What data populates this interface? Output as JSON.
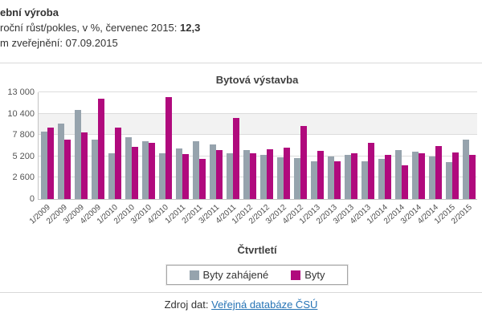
{
  "header": {
    "title_fragment": "ební výroba",
    "growth_prefix": "roční růst/pokles, v %, červenec 2015: ",
    "growth_value": "12,3",
    "publish_line": "m zveřejnění: 07.09.2015"
  },
  "footer": {
    "prefix": "Zdroj dat: ",
    "link_text": "Veřejná databáze ČSÚ"
  },
  "colors": {
    "series_started": "#96a3ad",
    "series_byty": "#b00a7d",
    "band": "#f2f2f2",
    "gridline": "#dcdcdc",
    "link": "#2573b5",
    "divider": "#d9d9d9"
  },
  "chart_data": {
    "type": "bar",
    "title": "Bytová výstavba",
    "xlabel": "Čtvrtletí",
    "ylabel": "",
    "ylim": [
      0,
      13000
    ],
    "yticks": [
      0,
      2600,
      5200,
      7800,
      10400,
      13000
    ],
    "ytick_labels": [
      "0",
      "2 600",
      "5 200",
      "7 800",
      "10 400",
      "13 000"
    ],
    "grid": true,
    "band": {
      "from": 7800,
      "to": 10400
    },
    "legend_position": "bottom",
    "categories": [
      "1/2009",
      "2/2009",
      "3/2009",
      "4/2009",
      "1/2010",
      "2/2010",
      "3/2010",
      "4/2010",
      "1/2011",
      "2/2011",
      "3/2011",
      "4/2011",
      "1/2012",
      "2/2012",
      "3/2012",
      "4/2012",
      "1/2013",
      "2/2013",
      "3/2013",
      "4/2013",
      "1/2014",
      "2/2014",
      "3/2014",
      "4/2014",
      "1/2015",
      "2/2015"
    ],
    "series": [
      {
        "name": "Byty zahájené",
        "color": "#96a3ad",
        "values": [
          8200,
          9200,
          10900,
          7200,
          5600,
          7500,
          7000,
          5600,
          6200,
          7000,
          6600,
          5600,
          6000,
          5400,
          5100,
          5000,
          4600,
          5200,
          5400,
          4600,
          4900,
          6000,
          5800,
          5200,
          4500,
          7200
        ]
      },
      {
        "name": "Byty",
        "color": "#b00a7d",
        "values": [
          8700,
          7200,
          8100,
          12200,
          8700,
          6400,
          6800,
          12400,
          5500,
          4900,
          6000,
          9900,
          5600,
          6100,
          6300,
          8900,
          5900,
          4600,
          5600,
          6800,
          5400,
          4100,
          5600,
          6500,
          5700,
          5400
        ]
      }
    ]
  }
}
